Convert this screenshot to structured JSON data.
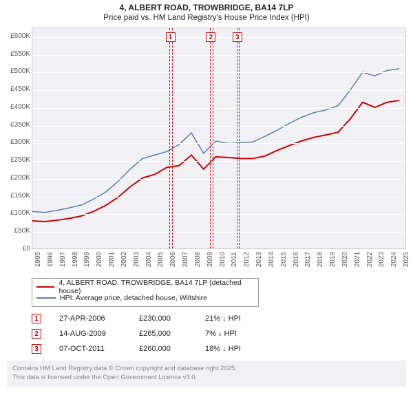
{
  "title": "4, ALBERT ROAD, TROWBRIDGE, BA14 7LP",
  "subtitle": "Price paid vs. HM Land Registry's House Price Index (HPI)",
  "chart": {
    "type": "line",
    "background_color": "#f1f1f5",
    "grid_color": "#ffffff",
    "border_color": "#cccccc",
    "x_years": [
      1995,
      1996,
      1997,
      1998,
      1999,
      2000,
      2001,
      2002,
      2003,
      2004,
      2005,
      2006,
      2007,
      2008,
      2009,
      2010,
      2011,
      2012,
      2013,
      2014,
      2015,
      2016,
      2017,
      2018,
      2019,
      2020,
      2021,
      2022,
      2023,
      2024,
      2025
    ],
    "xlim": [
      1995,
      2025.5
    ],
    "ylim": [
      0,
      625000
    ],
    "ytick_step": 50000,
    "ytick_prefix": "£",
    "ytick_suffix": "K",
    "series": [
      {
        "name": "hpi",
        "label": "HPI: Average price, detached house, Wiltshire",
        "color": "#5b7fb0",
        "line_width": 1.5,
        "values": [
          105000,
          102000,
          108000,
          115000,
          123000,
          140000,
          160000,
          190000,
          225000,
          255000,
          265000,
          275000,
          295000,
          328000,
          270000,
          305000,
          298000,
          300000,
          302000,
          318000,
          335000,
          355000,
          372000,
          385000,
          393000,
          405000,
          450000,
          500000,
          490000,
          505000,
          510000
        ]
      },
      {
        "name": "paid",
        "label": "4, ALBERT ROAD, TROWBRIDGE, BA14 7LP (detached house)",
        "color": "#cc0000",
        "line_width": 2,
        "values": [
          78000,
          76000,
          80000,
          85000,
          92000,
          105000,
          122000,
          145000,
          175000,
          200000,
          210000,
          230000,
          235000,
          265000,
          225000,
          260000,
          258000,
          255000,
          255000,
          262000,
          278000,
          292000,
          305000,
          315000,
          322000,
          330000,
          368000,
          415000,
          400000,
          415000,
          420000
        ]
      }
    ],
    "markers": [
      {
        "num": "1",
        "year": 2006.3,
        "width_years": 0.25
      },
      {
        "num": "2",
        "year": 2009.6,
        "width_years": 0.25
      },
      {
        "num": "3",
        "year": 2011.75,
        "width_years": 0.25
      }
    ]
  },
  "legend": {
    "items": [
      {
        "color": "#cc0000",
        "label": "4, ALBERT ROAD, TROWBRIDGE, BA14 7LP (detached house)"
      },
      {
        "color": "#5b7fb0",
        "label": "HPI: Average price, detached house, Wiltshire"
      }
    ]
  },
  "events": [
    {
      "num": "1",
      "date": "27-APR-2006",
      "price": "£230,000",
      "diff": "21% ↓ HPI"
    },
    {
      "num": "2",
      "date": "14-AUG-2009",
      "price": "£265,000",
      "diff": "7% ↓ HPI"
    },
    {
      "num": "3",
      "date": "07-OCT-2011",
      "price": "£260,000",
      "diff": "18% ↓ HPI"
    }
  ],
  "footer_line1": "Contains HM Land Registry data © Crown copyright and database right 2025.",
  "footer_line2": "This data is licensed under the Open Government Licence v3.0."
}
